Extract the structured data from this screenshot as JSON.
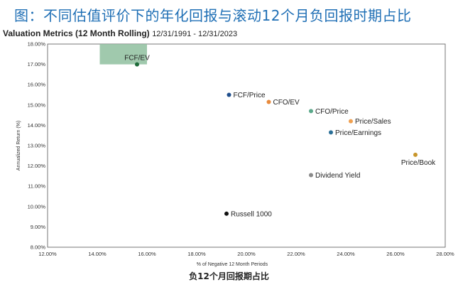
{
  "header": {
    "title": "图：不同估值评价下的年化回报与滚动12个月负回报时期占比",
    "subtitle": "Valuation Metrics (12 Month Rolling)",
    "date_range": "12/31/1991 - 12/31/2023"
  },
  "chart_data": {
    "type": "scatter",
    "title": "Valuation Metrics (12 Month Rolling)",
    "xlabel": "% of Negative 12 Month Periods",
    "ylabel": "Annualized Return (%)",
    "xlim": [
      12,
      28
    ],
    "ylim": [
      8,
      18
    ],
    "x_ticks": [
      "12.00%",
      "14.00%",
      "16.00%",
      "18.00%",
      "20.00%",
      "22.00%",
      "24.00%",
      "26.00%",
      "28.00%"
    ],
    "y_ticks": [
      "8.00%",
      "9.00%",
      "10.00%",
      "11.00%",
      "12.00%",
      "13.00%",
      "14.00%",
      "15.00%",
      "16.00%",
      "17.00%",
      "18.00%"
    ],
    "grid": false,
    "highlight": {
      "x": [
        14.1,
        16.0
      ],
      "y": [
        17.0,
        18.0
      ],
      "color": "#8fbf9f"
    },
    "points": [
      {
        "name": "FCF/EV",
        "x": 15.6,
        "y": 17.0,
        "color": "#1f6b3a",
        "label_pos": "above"
      },
      {
        "name": "FCF/Price",
        "x": 19.3,
        "y": 15.5,
        "color": "#1f4e8c",
        "label_pos": "right"
      },
      {
        "name": "CFO/EV",
        "x": 20.9,
        "y": 15.15,
        "color": "#e88a3c",
        "label_pos": "right"
      },
      {
        "name": "CFO/Price",
        "x": 22.6,
        "y": 14.7,
        "color": "#5aa88a",
        "label_pos": "right"
      },
      {
        "name": "Price/Sales",
        "x": 24.2,
        "y": 14.2,
        "color": "#f0a050",
        "label_pos": "right"
      },
      {
        "name": "Price/Earnings",
        "x": 23.4,
        "y": 13.65,
        "color": "#2a6f97",
        "label_pos": "right"
      },
      {
        "name": "Price/Book",
        "x": 26.8,
        "y": 12.55,
        "color": "#c8962a",
        "label_pos": "below"
      },
      {
        "name": "Dividend Yield",
        "x": 22.6,
        "y": 11.55,
        "color": "#8a8a8a",
        "label_pos": "right"
      },
      {
        "name": "Russell 1000",
        "x": 19.2,
        "y": 9.65,
        "color": "#111111",
        "label_pos": "right"
      }
    ]
  },
  "footer": {
    "caption": "负12个月回报期占比"
  }
}
